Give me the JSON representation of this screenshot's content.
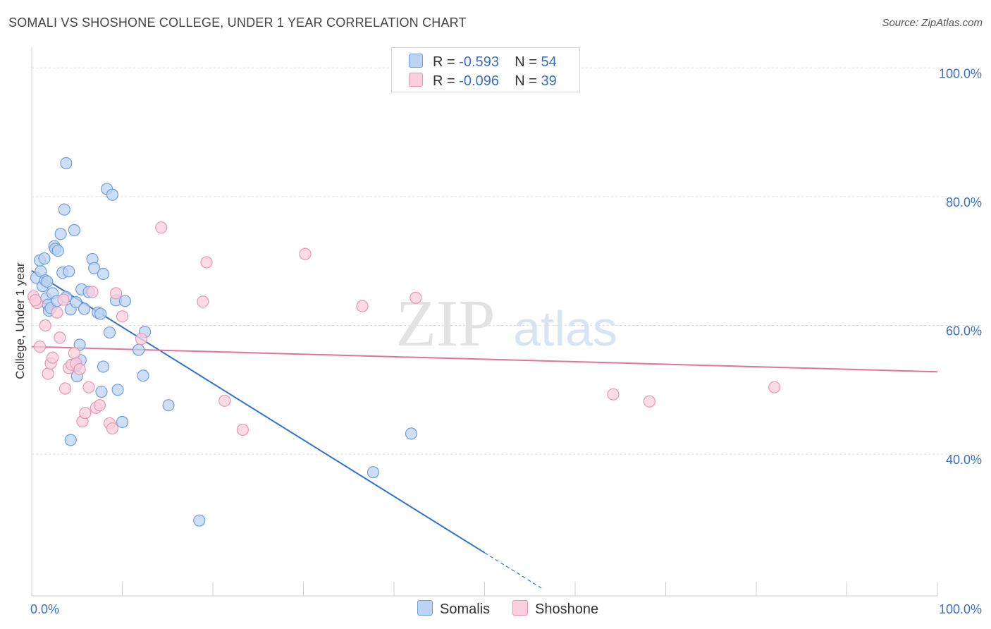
{
  "title": "SOMALI VS SHOSHONE COLLEGE, UNDER 1 YEAR CORRELATION CHART",
  "source": "Source: ZipAtlas.com",
  "watermark": {
    "zip": "ZIP",
    "atlas": "atlas"
  },
  "legend": {
    "somali": {
      "r_label": "R = ",
      "r_value": "-0.593",
      "n_label": "N = ",
      "n_value": "54"
    },
    "shoshone": {
      "r_label": "R = ",
      "r_value": "-0.096",
      "n_label": "N = ",
      "n_value": "39"
    }
  },
  "bottom_legend": {
    "somali": "Somalis",
    "shoshone": "Shoshone"
  },
  "colors": {
    "somali_fill": "#bcd3f2",
    "somali_stroke": "#6f9ee0",
    "somali_line": "#2f74d0",
    "shoshone_fill": "#fbcfdc",
    "shoshone_stroke": "#e996b3",
    "shoshone_line": "#e4729a",
    "tick_label": "#3a6fc4",
    "grid": "#dddddd"
  },
  "chart_data": {
    "type": "scatter",
    "title": "SOMALI VS SHOSHONE COLLEGE, UNDER 1 YEAR CORRELATION CHART",
    "xlabel": "",
    "ylabel": "College, Under 1 year",
    "xlim": [
      0,
      100
    ],
    "ylim": [
      18,
      102
    ],
    "x_ticks": [
      {
        "value": 0,
        "label": "0.0%"
      },
      {
        "value": 100,
        "label": "100.0%"
      }
    ],
    "y_ticks": [
      {
        "value": 40,
        "label": "40.0%"
      },
      {
        "value": 60,
        "label": "60.0%"
      },
      {
        "value": 80,
        "label": "80.0%"
      },
      {
        "value": 100,
        "label": "100.0%"
      }
    ],
    "series": [
      {
        "name": "Somalis",
        "R": -0.593,
        "N": 54,
        "trend": {
          "x0": 0,
          "y0": 68.5,
          "x1": 50,
          "y1": 24.7,
          "dash_to_x": 56.5
        },
        "points": [
          [
            0.5,
            67.4
          ],
          [
            0.9,
            70.1
          ],
          [
            1.0,
            68.4
          ],
          [
            1.2,
            66.1
          ],
          [
            1.4,
            70.4
          ],
          [
            1.5,
            67.0
          ],
          [
            1.7,
            66.8
          ],
          [
            1.6,
            64.2
          ],
          [
            1.8,
            63.2
          ],
          [
            1.9,
            62.3
          ],
          [
            2.1,
            62.7
          ],
          [
            2.3,
            65.0
          ],
          [
            2.5,
            72.3
          ],
          [
            2.6,
            71.9
          ],
          [
            2.8,
            63.8
          ],
          [
            2.9,
            71.6
          ],
          [
            3.2,
            74.2
          ],
          [
            3.4,
            68.2
          ],
          [
            3.6,
            78.0
          ],
          [
            3.8,
            64.4
          ],
          [
            4.1,
            68.4
          ],
          [
            4.3,
            62.5
          ],
          [
            4.7,
            74.8
          ],
          [
            4.9,
            63.6
          ],
          [
            5.3,
            57.0
          ],
          [
            5.5,
            65.6
          ],
          [
            5.8,
            62.6
          ],
          [
            6.3,
            65.2
          ],
          [
            6.7,
            70.3
          ],
          [
            6.9,
            68.9
          ],
          [
            7.3,
            62.0
          ],
          [
            7.6,
            61.8
          ],
          [
            7.9,
            68.0
          ],
          [
            8.3,
            81.2
          ],
          [
            8.6,
            58.9
          ],
          [
            8.9,
            80.3
          ],
          [
            9.3,
            63.9
          ],
          [
            10.3,
            63.8
          ],
          [
            11.8,
            56.2
          ],
          [
            12.5,
            59.0
          ],
          [
            5.4,
            54.6
          ],
          [
            4.9,
            53.7
          ],
          [
            5.0,
            52.1
          ],
          [
            7.9,
            53.6
          ],
          [
            9.5,
            50.0
          ],
          [
            7.7,
            49.7
          ],
          [
            12.3,
            52.2
          ],
          [
            10.0,
            45.0
          ],
          [
            4.3,
            42.2
          ],
          [
            15.1,
            47.6
          ],
          [
            41.9,
            43.2
          ],
          [
            37.7,
            37.2
          ],
          [
            18.5,
            29.7
          ],
          [
            3.8,
            85.2
          ]
        ]
      },
      {
        "name": "Shoshone",
        "R": -0.096,
        "N": 39,
        "trend": {
          "x0": 0,
          "y0": 56.7,
          "x1": 100,
          "y1": 52.8
        },
        "points": [
          [
            0.2,
            64.5
          ],
          [
            0.6,
            63.5
          ],
          [
            0.9,
            56.7
          ],
          [
            1.5,
            60.0
          ],
          [
            1.8,
            52.5
          ],
          [
            2.1,
            54.1
          ],
          [
            2.3,
            55.0
          ],
          [
            2.8,
            62.0
          ],
          [
            3.1,
            58.1
          ],
          [
            3.5,
            64.0
          ],
          [
            3.7,
            50.2
          ],
          [
            4.1,
            53.4
          ],
          [
            4.4,
            53.9
          ],
          [
            4.7,
            55.7
          ],
          [
            4.9,
            54.1
          ],
          [
            5.3,
            53.2
          ],
          [
            5.6,
            45.1
          ],
          [
            5.9,
            46.4
          ],
          [
            6.3,
            50.4
          ],
          [
            6.7,
            65.2
          ],
          [
            7.1,
            47.2
          ],
          [
            7.5,
            47.6
          ],
          [
            8.6,
            44.8
          ],
          [
            8.9,
            44.0
          ],
          [
            9.3,
            65.0
          ],
          [
            10.0,
            61.4
          ],
          [
            12.1,
            57.9
          ],
          [
            14.3,
            75.2
          ],
          [
            18.9,
            63.7
          ],
          [
            19.3,
            69.8
          ],
          [
            21.3,
            48.3
          ],
          [
            23.3,
            43.8
          ],
          [
            30.2,
            71.1
          ],
          [
            36.5,
            63.0
          ],
          [
            42.4,
            64.3
          ],
          [
            64.2,
            49.3
          ],
          [
            68.2,
            48.2
          ],
          [
            82.0,
            50.4
          ],
          [
            0.4,
            63.9
          ]
        ]
      }
    ]
  }
}
